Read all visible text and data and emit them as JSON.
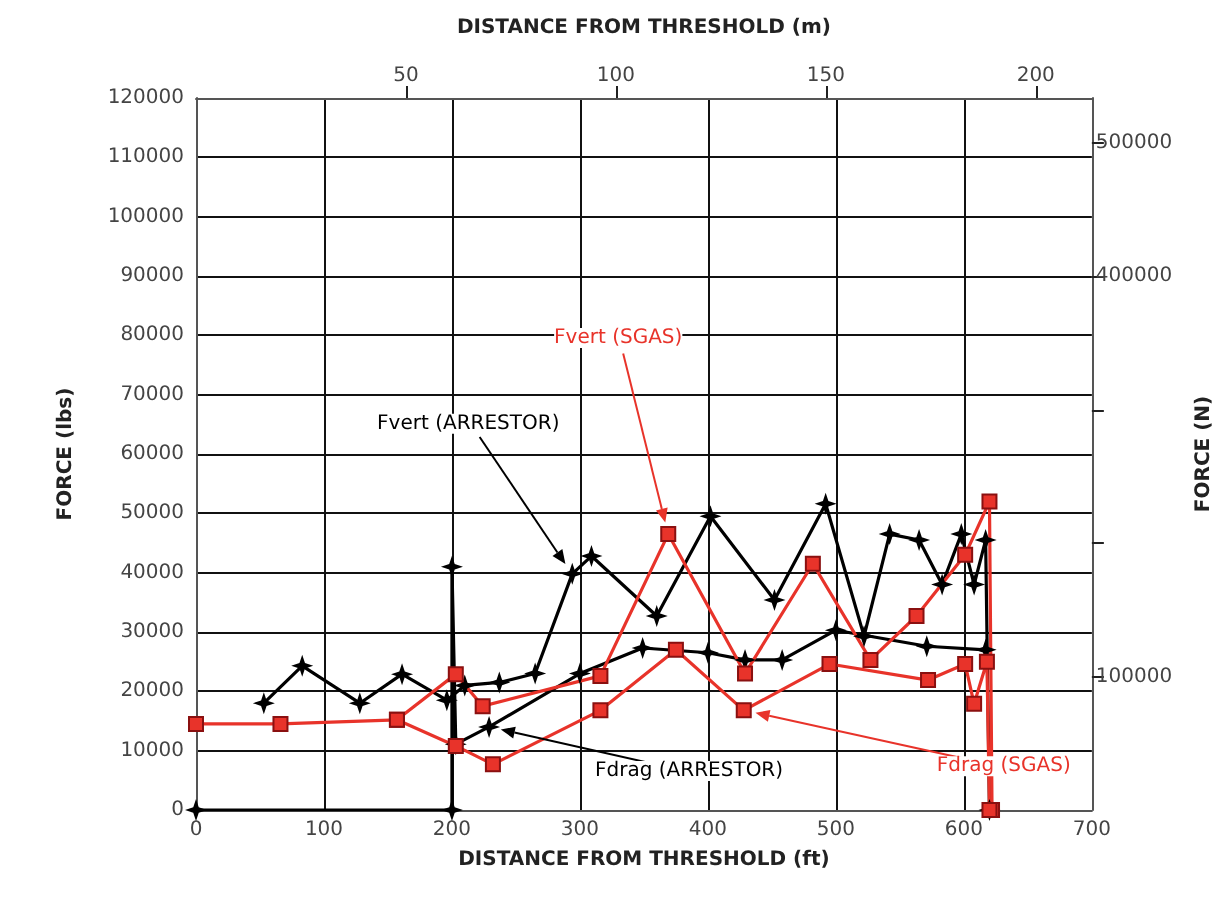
{
  "chart_data": {
    "type": "line",
    "xlabel": "DISTANCE FROM THRESHOLD (ft)",
    "x2label": "DISTANCE FROM THRESHOLD (m)",
    "ylabel": "FORCE (lbs)",
    "y2label": "FORCE (N)",
    "xlim": [
      0,
      700
    ],
    "xticks": [
      0,
      100,
      200,
      300,
      400,
      500,
      600,
      700
    ],
    "x2lim": [
      0,
      213.36
    ],
    "x2ticks": [
      50,
      100,
      150,
      200
    ],
    "ylim": [
      0,
      120000
    ],
    "yticks": [
      0,
      10000,
      20000,
      30000,
      40000,
      50000,
      60000,
      70000,
      80000,
      90000,
      100000,
      110000,
      120000
    ],
    "y2lim": [
      0,
      533787
    ],
    "y2ticks": [
      100000,
      {
        "value": 200000,
        "label": null
      },
      {
        "value": 300000,
        "label": null
      },
      400000,
      500000
    ],
    "grid": true,
    "legend": false,
    "line_style": "solid",
    "series": [
      {
        "name": "Fvert (ARRESTOR)",
        "color": "#000000",
        "marker": "star",
        "x": [
          53,
          83,
          128,
          161,
          196,
          210,
          237,
          265,
          294,
          309,
          360,
          402,
          452,
          492,
          522,
          542,
          565,
          583,
          598,
          608,
          617,
          620
        ],
        "values": [
          18000,
          24300,
          18000,
          22900,
          18500,
          21000,
          21500,
          23000,
          39800,
          42800,
          32700,
          49500,
          35400,
          51600,
          29300,
          46500,
          45500,
          38000,
          46500,
          38000,
          45500,
          0
        ]
      },
      {
        "name": "Fdrag (ARRESTOR)",
        "color": "#000000",
        "marker": "star",
        "x": [
          0,
          200,
          200,
          203,
          229,
          300,
          349,
          400,
          429,
          458,
          500,
          571,
          617
        ],
        "values": [
          0,
          0,
          41000,
          11100,
          14000,
          23000,
          27300,
          26500,
          25300,
          25300,
          30300,
          27600,
          27000
        ]
      },
      {
        "name": "Fvert (SGAS)",
        "color": "#e8332a",
        "marker": "square",
        "x": [
          0,
          66,
          157,
          203,
          224,
          316,
          369,
          429,
          482,
          527,
          563,
          601,
          620,
          622
        ],
        "values": [
          14500,
          14500,
          15200,
          22900,
          17500,
          22600,
          46500,
          23000,
          41500,
          25300,
          32700,
          43000,
          52000,
          0
        ]
      },
      {
        "name": "Fdrag (SGAS)",
        "color": "#e8332a",
        "marker": "square",
        "x": [
          157,
          203,
          232,
          316,
          375,
          428,
          495,
          572,
          601,
          608,
          618,
          620
        ],
        "values": [
          15200,
          10800,
          7700,
          16800,
          27000,
          16800,
          24600,
          21900,
          24600,
          17900,
          25000,
          0
        ]
      }
    ]
  }
}
